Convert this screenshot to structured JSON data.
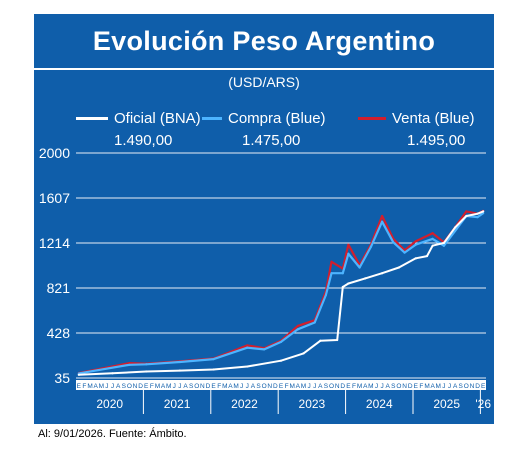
{
  "title": "Evolución Peso Argentino",
  "subtitle": "(USD/ARS)",
  "source": "Al: 9/01/2026. Fuente: Ámbito.",
  "colors": {
    "background": "#0f5eaa",
    "oficial": "#ffffff",
    "compra": "#4db4ff",
    "venta": "#d21e2d",
    "grid": "#e8eef6",
    "text": "#ffffff"
  },
  "legend": [
    {
      "name": "Oficial (BNA)",
      "value": "1.490,00",
      "color": "#ffffff"
    },
    {
      "name": "Compra (Blue)",
      "value": "1.475,00",
      "color": "#4db4ff"
    },
    {
      "name": "Venta (Blue)",
      "value": "1.495,00",
      "color": "#d21e2d"
    }
  ],
  "chart_data": {
    "type": "line",
    "title": "Evolución Peso Argentino",
    "subtitle": "(USD/ARS)",
    "ylim": [
      35,
      2000
    ],
    "yticks": [
      "35",
      "428",
      "821",
      "1214",
      "1607",
      "2000"
    ],
    "grid": true,
    "legend_position": "top",
    "month_labels": [
      "E",
      "F",
      "M",
      "A",
      "M",
      "J",
      "J",
      "A",
      "S",
      "O",
      "N",
      "D"
    ],
    "year_labels": [
      "2020",
      "2021",
      "2022",
      "2023",
      "2024",
      "2025",
      "'26"
    ],
    "x_start": "2020-01",
    "x_end": "2026-01",
    "series": [
      {
        "name": "Oficial (BNA)",
        "points": [
          [
            "2020-01",
            63
          ],
          [
            "2020-07",
            76
          ],
          [
            "2021-01",
            92
          ],
          [
            "2021-07",
            100
          ],
          [
            "2022-01",
            109
          ],
          [
            "2022-07",
            135
          ],
          [
            "2023-01",
            186
          ],
          [
            "2023-05",
            250
          ],
          [
            "2023-08",
            360
          ],
          [
            "2023-11",
            367
          ],
          [
            "2023-12",
            830
          ],
          [
            "2024-01",
            860
          ],
          [
            "2024-04",
            905
          ],
          [
            "2024-07",
            950
          ],
          [
            "2024-10",
            1000
          ],
          [
            "2025-01",
            1080
          ],
          [
            "2025-03",
            1100
          ],
          [
            "2025-04",
            1190
          ],
          [
            "2025-06",
            1215
          ],
          [
            "2025-08",
            1350
          ],
          [
            "2025-10",
            1450
          ],
          [
            "2025-12",
            1470
          ],
          [
            "2026-01",
            1490
          ]
        ]
      },
      {
        "name": "Compra (Blue)",
        "points": [
          [
            "2020-01",
            75
          ],
          [
            "2020-10",
            150
          ],
          [
            "2021-01",
            155
          ],
          [
            "2021-07",
            175
          ],
          [
            "2022-01",
            200
          ],
          [
            "2022-07",
            300
          ],
          [
            "2022-10",
            285
          ],
          [
            "2023-01",
            350
          ],
          [
            "2023-04",
            460
          ],
          [
            "2023-07",
            520
          ],
          [
            "2023-09",
            760
          ],
          [
            "2023-10",
            950
          ],
          [
            "2023-12",
            950
          ],
          [
            "2024-01",
            1120
          ],
          [
            "2024-03",
            1000
          ],
          [
            "2024-05",
            1180
          ],
          [
            "2024-07",
            1400
          ],
          [
            "2024-09",
            1220
          ],
          [
            "2024-11",
            1130
          ],
          [
            "2025-01",
            1200
          ],
          [
            "2025-04",
            1250
          ],
          [
            "2025-06",
            1190
          ],
          [
            "2025-08",
            1320
          ],
          [
            "2025-10",
            1450
          ],
          [
            "2025-12",
            1440
          ],
          [
            "2026-01",
            1475
          ]
        ]
      },
      {
        "name": "Venta (Blue)",
        "points": [
          [
            "2020-01",
            78
          ],
          [
            "2020-10",
            165
          ],
          [
            "2021-01",
            160
          ],
          [
            "2021-07",
            180
          ],
          [
            "2022-01",
            205
          ],
          [
            "2022-07",
            320
          ],
          [
            "2022-10",
            295
          ],
          [
            "2023-01",
            360
          ],
          [
            "2023-04",
            490
          ],
          [
            "2023-07",
            540
          ],
          [
            "2023-09",
            790
          ],
          [
            "2023-10",
            1050
          ],
          [
            "2023-12",
            990
          ],
          [
            "2024-01",
            1200
          ],
          [
            "2024-03",
            1020
          ],
          [
            "2024-05",
            1200
          ],
          [
            "2024-07",
            1450
          ],
          [
            "2024-09",
            1250
          ],
          [
            "2024-11",
            1150
          ],
          [
            "2025-01",
            1230
          ],
          [
            "2025-04",
            1300
          ],
          [
            "2025-06",
            1220
          ],
          [
            "2025-08",
            1350
          ],
          [
            "2025-10",
            1490
          ],
          [
            "2025-12",
            1470
          ],
          [
            "2026-01",
            1495
          ]
        ]
      }
    ]
  }
}
